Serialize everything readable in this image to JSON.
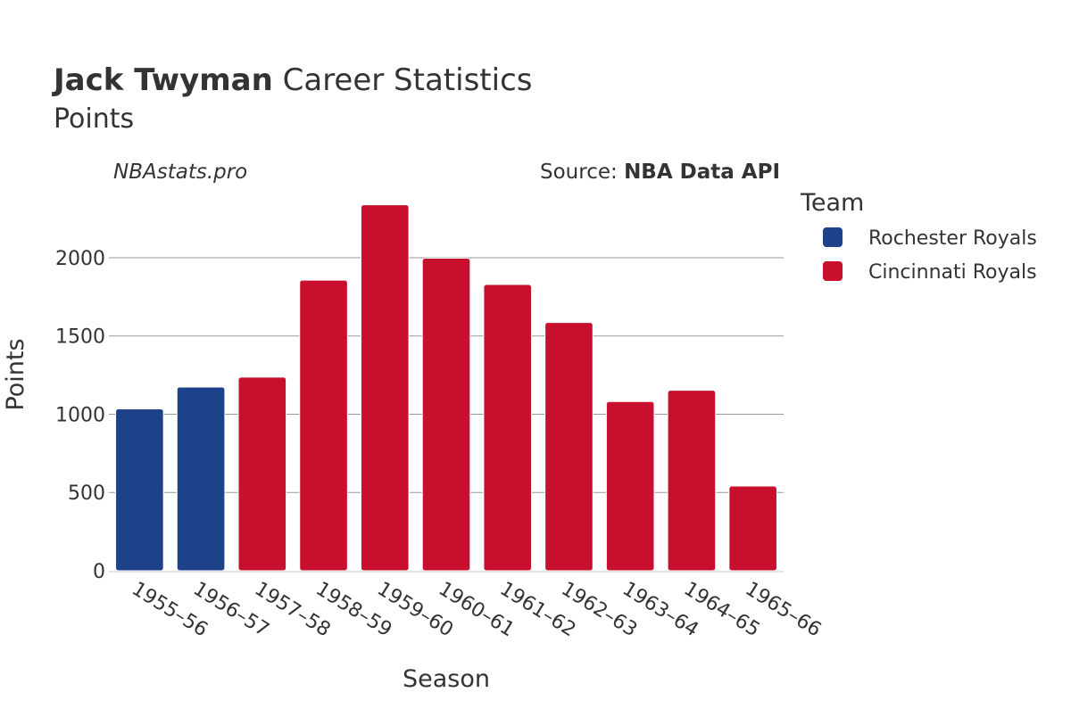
{
  "title": {
    "bold": "Jack Twyman",
    "rest": " Career Statistics"
  },
  "subtitle": "Points",
  "watermark": "NBAstats.pro",
  "source": {
    "label": "Source: ",
    "value": "NBA Data API"
  },
  "legend": {
    "title": "Team",
    "items": [
      {
        "name": "Rochester Royals",
        "color": "#1d428a"
      },
      {
        "name": "Cincinnati Royals",
        "color": "#c8102e"
      }
    ]
  },
  "chart_data": {
    "type": "bar",
    "xlabel": "Season",
    "ylabel": "Points",
    "ylim": [
      0,
      2450
    ],
    "yticks": [
      0,
      500,
      1000,
      1500,
      2000
    ],
    "grid": true,
    "legend_position": "right",
    "categories": [
      "1955–56",
      "1956–57",
      "1957–58",
      "1958–59",
      "1959–60",
      "1960–61",
      "1961–62",
      "1962–63",
      "1963–64",
      "1964–65",
      "1965–66"
    ],
    "values": [
      1034,
      1174,
      1237,
      1857,
      2338,
      1997,
      1829,
      1586,
      1081,
      1153,
      541
    ],
    "teams": [
      "Rochester Royals",
      "Rochester Royals",
      "Cincinnati Royals",
      "Cincinnati Royals",
      "Cincinnati Royals",
      "Cincinnati Royals",
      "Cincinnati Royals",
      "Cincinnati Royals",
      "Cincinnati Royals",
      "Cincinnati Royals",
      "Cincinnati Royals"
    ]
  }
}
